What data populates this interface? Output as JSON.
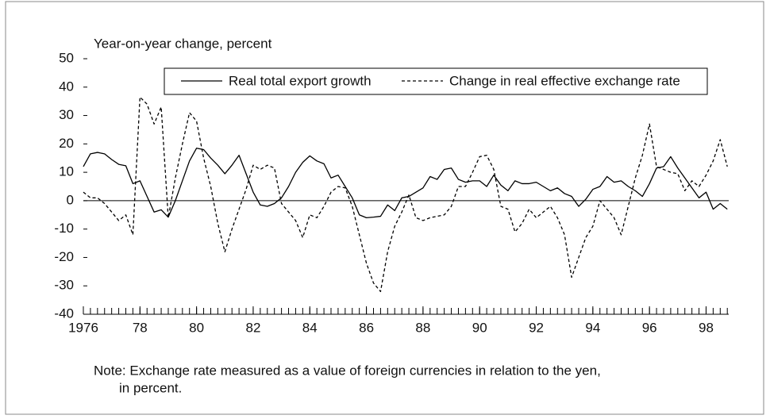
{
  "chart_data": {
    "type": "line",
    "y_label": "Year-on-year change, percent",
    "note": [
      "Note: Exchange rate measured as a value of foreign currencies in relation to the yen,",
      "in percent."
    ],
    "x": [
      1976,
      1976.25,
      1976.5,
      1976.75,
      1977,
      1977.25,
      1977.5,
      1977.75,
      1978,
      1978.25,
      1978.5,
      1978.75,
      1979,
      1979.25,
      1979.5,
      1979.75,
      1980,
      1980.25,
      1980.5,
      1980.75,
      1981,
      1981.25,
      1981.5,
      1981.75,
      1982,
      1982.25,
      1982.5,
      1982.75,
      1983,
      1983.25,
      1983.5,
      1983.75,
      1984,
      1984.25,
      1984.5,
      1984.75,
      1985,
      1985.25,
      1985.5,
      1985.75,
      1986,
      1986.25,
      1986.5,
      1986.75,
      1987,
      1987.25,
      1987.5,
      1987.75,
      1988,
      1988.25,
      1988.5,
      1988.75,
      1989,
      1989.25,
      1989.5,
      1989.75,
      1990,
      1990.25,
      1990.5,
      1990.75,
      1991,
      1991.25,
      1991.5,
      1991.75,
      1992,
      1992.25,
      1992.5,
      1992.75,
      1993,
      1993.25,
      1993.5,
      1993.75,
      1994,
      1994.25,
      1994.5,
      1994.75,
      1995,
      1995.25,
      1995.5,
      1995.75,
      1996,
      1996.25,
      1996.5,
      1996.75,
      1997,
      1997.25,
      1997.5,
      1997.75,
      1998,
      1998.25,
      1998.5,
      1998.75
    ],
    "series": [
      {
        "name": "Real total export growth",
        "color": "#000000",
        "dash": "solid",
        "values": [
          12,
          16.5,
          17,
          16.5,
          14.5,
          12.8,
          12.3,
          6,
          7,
          1.5,
          -4,
          -3.2,
          -5.8,
          0,
          7,
          14,
          18.5,
          18,
          15,
          12.5,
          9.5,
          12.5,
          16,
          9.5,
          3,
          -1.5,
          -2,
          -1,
          1,
          5,
          10,
          13.5,
          15.8,
          14,
          13,
          8,
          9,
          5,
          1,
          -5,
          -6,
          -5.8,
          -5.5,
          -1.5,
          -3.5,
          1,
          1.5,
          3,
          4.5,
          8.5,
          7.5,
          11,
          11.5,
          7.5,
          6.5,
          7,
          7,
          5,
          9,
          5.5,
          3.5,
          7,
          6,
          6,
          6.5,
          5,
          3.5,
          4.5,
          2.5,
          1.5,
          -2,
          0.5,
          4,
          5,
          8.5,
          6.5,
          7,
          5,
          3.5,
          1.5,
          6,
          11.5,
          12,
          15.5,
          11.5,
          8,
          4.5,
          1,
          3,
          -3,
          -1,
          -3
        ]
      },
      {
        "name": "Change in real effective exchange rate",
        "color": "#000000",
        "dash": "dashed",
        "values": [
          3,
          1,
          1,
          -1,
          -4,
          -7,
          -5,
          -12,
          36.5,
          34,
          27,
          33,
          -6,
          8,
          20,
          31,
          28,
          15,
          5,
          -8,
          -18,
          -10,
          -3,
          4,
          12.5,
          11,
          12.5,
          11.5,
          -1,
          -4,
          -7,
          -13,
          -5,
          -6,
          -2,
          3,
          5,
          4.5,
          -2,
          -12,
          -22,
          -29,
          -32,
          -18,
          -9,
          -4,
          2,
          -6,
          -7,
          -6,
          -5.5,
          -5,
          -2,
          5,
          5,
          10,
          15.5,
          16,
          11,
          -2,
          -3,
          -11,
          -8,
          -3,
          -6,
          -4,
          -2,
          -6,
          -12,
          -27,
          -20,
          -13,
          -9,
          0,
          -3,
          -6,
          -12,
          -2,
          8,
          16,
          27,
          12,
          11,
          10,
          9.5,
          3.5,
          7,
          5,
          9,
          14,
          21.5,
          12
        ]
      }
    ],
    "xlim": [
      1976,
      1998.8
    ],
    "xticks": [
      {
        "value": 1976,
        "label": "1976"
      },
      {
        "value": 1978,
        "label": "78"
      },
      {
        "value": 1980,
        "label": "80"
      },
      {
        "value": 1982,
        "label": "82"
      },
      {
        "value": 1984,
        "label": "84"
      },
      {
        "value": 1986,
        "label": "86"
      },
      {
        "value": 1988,
        "label": "88"
      },
      {
        "value": 1990,
        "label": "90"
      },
      {
        "value": 1992,
        "label": "92"
      },
      {
        "value": 1994,
        "label": "94"
      },
      {
        "value": 1996,
        "label": "96"
      },
      {
        "value": 1998,
        "label": "98"
      }
    ],
    "ylim": [
      -40,
      50
    ],
    "yticks": [
      -40,
      -30,
      -20,
      -10,
      0,
      10,
      20,
      30,
      40,
      50
    ],
    "reference_line": 0,
    "grid": false,
    "legend": "top"
  }
}
